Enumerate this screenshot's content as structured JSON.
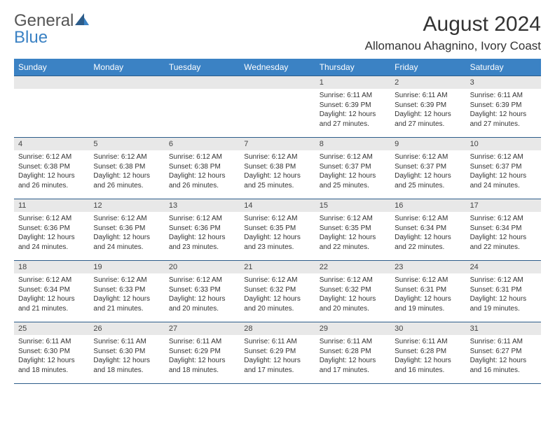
{
  "logo": {
    "line1": "General",
    "line2": "Blue"
  },
  "title": "August 2024",
  "location": "Allomanou Ahagnino, Ivory Coast",
  "colors": {
    "header_bg": "#3b82c4",
    "header_text": "#ffffff",
    "rule": "#2c5c8a",
    "daynum_bg": "#e8e8e8",
    "body_text": "#333333"
  },
  "dayNames": [
    "Sunday",
    "Monday",
    "Tuesday",
    "Wednesday",
    "Thursday",
    "Friday",
    "Saturday"
  ],
  "leadingBlanks": 4,
  "days": [
    {
      "n": 1,
      "sr": "6:11 AM",
      "ss": "6:39 PM",
      "dl": "12 hours and 27 minutes."
    },
    {
      "n": 2,
      "sr": "6:11 AM",
      "ss": "6:39 PM",
      "dl": "12 hours and 27 minutes."
    },
    {
      "n": 3,
      "sr": "6:11 AM",
      "ss": "6:39 PM",
      "dl": "12 hours and 27 minutes."
    },
    {
      "n": 4,
      "sr": "6:12 AM",
      "ss": "6:38 PM",
      "dl": "12 hours and 26 minutes."
    },
    {
      "n": 5,
      "sr": "6:12 AM",
      "ss": "6:38 PM",
      "dl": "12 hours and 26 minutes."
    },
    {
      "n": 6,
      "sr": "6:12 AM",
      "ss": "6:38 PM",
      "dl": "12 hours and 26 minutes."
    },
    {
      "n": 7,
      "sr": "6:12 AM",
      "ss": "6:38 PM",
      "dl": "12 hours and 25 minutes."
    },
    {
      "n": 8,
      "sr": "6:12 AM",
      "ss": "6:37 PM",
      "dl": "12 hours and 25 minutes."
    },
    {
      "n": 9,
      "sr": "6:12 AM",
      "ss": "6:37 PM",
      "dl": "12 hours and 25 minutes."
    },
    {
      "n": 10,
      "sr": "6:12 AM",
      "ss": "6:37 PM",
      "dl": "12 hours and 24 minutes."
    },
    {
      "n": 11,
      "sr": "6:12 AM",
      "ss": "6:36 PM",
      "dl": "12 hours and 24 minutes."
    },
    {
      "n": 12,
      "sr": "6:12 AM",
      "ss": "6:36 PM",
      "dl": "12 hours and 24 minutes."
    },
    {
      "n": 13,
      "sr": "6:12 AM",
      "ss": "6:36 PM",
      "dl": "12 hours and 23 minutes."
    },
    {
      "n": 14,
      "sr": "6:12 AM",
      "ss": "6:35 PM",
      "dl": "12 hours and 23 minutes."
    },
    {
      "n": 15,
      "sr": "6:12 AM",
      "ss": "6:35 PM",
      "dl": "12 hours and 22 minutes."
    },
    {
      "n": 16,
      "sr": "6:12 AM",
      "ss": "6:34 PM",
      "dl": "12 hours and 22 minutes."
    },
    {
      "n": 17,
      "sr": "6:12 AM",
      "ss": "6:34 PM",
      "dl": "12 hours and 22 minutes."
    },
    {
      "n": 18,
      "sr": "6:12 AM",
      "ss": "6:34 PM",
      "dl": "12 hours and 21 minutes."
    },
    {
      "n": 19,
      "sr": "6:12 AM",
      "ss": "6:33 PM",
      "dl": "12 hours and 21 minutes."
    },
    {
      "n": 20,
      "sr": "6:12 AM",
      "ss": "6:33 PM",
      "dl": "12 hours and 20 minutes."
    },
    {
      "n": 21,
      "sr": "6:12 AM",
      "ss": "6:32 PM",
      "dl": "12 hours and 20 minutes."
    },
    {
      "n": 22,
      "sr": "6:12 AM",
      "ss": "6:32 PM",
      "dl": "12 hours and 20 minutes."
    },
    {
      "n": 23,
      "sr": "6:12 AM",
      "ss": "6:31 PM",
      "dl": "12 hours and 19 minutes."
    },
    {
      "n": 24,
      "sr": "6:12 AM",
      "ss": "6:31 PM",
      "dl": "12 hours and 19 minutes."
    },
    {
      "n": 25,
      "sr": "6:11 AM",
      "ss": "6:30 PM",
      "dl": "12 hours and 18 minutes."
    },
    {
      "n": 26,
      "sr": "6:11 AM",
      "ss": "6:30 PM",
      "dl": "12 hours and 18 minutes."
    },
    {
      "n": 27,
      "sr": "6:11 AM",
      "ss": "6:29 PM",
      "dl": "12 hours and 18 minutes."
    },
    {
      "n": 28,
      "sr": "6:11 AM",
      "ss": "6:29 PM",
      "dl": "12 hours and 17 minutes."
    },
    {
      "n": 29,
      "sr": "6:11 AM",
      "ss": "6:28 PM",
      "dl": "12 hours and 17 minutes."
    },
    {
      "n": 30,
      "sr": "6:11 AM",
      "ss": "6:28 PM",
      "dl": "12 hours and 16 minutes."
    },
    {
      "n": 31,
      "sr": "6:11 AM",
      "ss": "6:27 PM",
      "dl": "12 hours and 16 minutes."
    }
  ],
  "labels": {
    "sunrise": "Sunrise: ",
    "sunset": "Sunset: ",
    "daylight": "Daylight: "
  }
}
